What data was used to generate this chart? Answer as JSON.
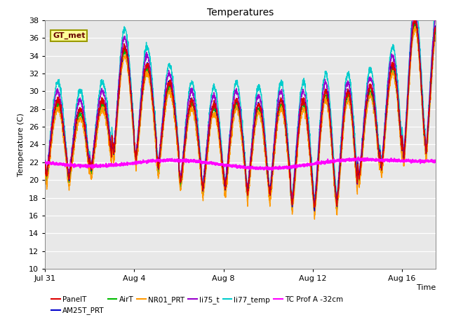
{
  "title": "Temperatures",
  "xlabel": "Time",
  "ylabel": "Temperature (C)",
  "ylim": [
    10,
    38
  ],
  "xlim": [
    0,
    17.5
  ],
  "yticks": [
    10,
    12,
    14,
    16,
    18,
    20,
    22,
    24,
    26,
    28,
    30,
    32,
    34,
    36,
    38
  ],
  "xtick_positions": [
    0,
    4,
    8,
    12,
    16
  ],
  "xtick_labels": [
    "Jul 31",
    "Aug 4",
    "Aug 8",
    "Aug 12",
    "Aug 16"
  ],
  "background_color": "#e8e8e8",
  "series": {
    "PanelT": {
      "color": "#dd0000",
      "lw": 1.0
    },
    "AM25T_PRT": {
      "color": "#0000cc",
      "lw": 1.0
    },
    "AirT": {
      "color": "#00bb00",
      "lw": 1.0
    },
    "NR01_PRT": {
      "color": "#ff9900",
      "lw": 1.0
    },
    "li75_t": {
      "color": "#9900cc",
      "lw": 1.0
    },
    "li77_temp": {
      "color": "#00cccc",
      "lw": 1.0
    },
    "TC Prof A -32cm": {
      "color": "#ff00ff",
      "lw": 1.5
    }
  },
  "annotation": {
    "text": "GT_met",
    "bgcolor": "#ffff99",
    "edgecolor": "#999900",
    "fontsize": 8,
    "fontweight": "bold",
    "textcolor": "#660000"
  },
  "legend_ncol": 3,
  "legend_fontsize": 7.5
}
